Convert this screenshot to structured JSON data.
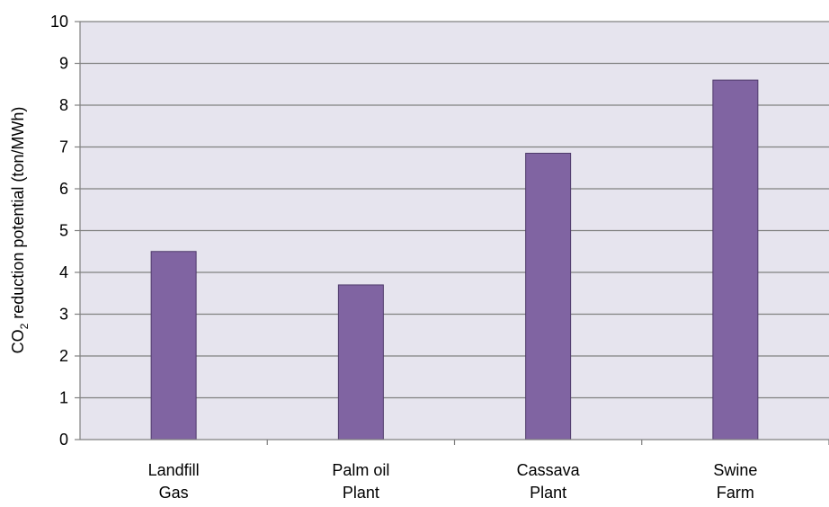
{
  "chart_data": {
    "type": "bar",
    "categories": [
      "Landfill Gas",
      "Palm oil Plant",
      "Cassava Plant",
      "Swine Farm"
    ],
    "category_lines": [
      [
        "Landfill",
        "Gas"
      ],
      [
        "Palm oil",
        "Plant"
      ],
      [
        "Cassava",
        "Plant"
      ],
      [
        "Swine",
        "Farm"
      ]
    ],
    "values": [
      4.5,
      3.7,
      6.85,
      8.6
    ],
    "title": "",
    "xlabel": "",
    "ylabel": {
      "prefix": "CO",
      "subscript": "2",
      "suffix": " reduction potential (ton/MWh)"
    },
    "ylim": [
      0,
      10
    ],
    "yticks": [
      "0",
      "1",
      "2",
      "3",
      "4",
      "5",
      "6",
      "7",
      "8",
      "9",
      "10"
    ],
    "grid": true,
    "legend": "none",
    "colors": {
      "bar_fill": "#8064a2",
      "bar_stroke": "#4f3b6b",
      "plot_background": "#e6e4ee",
      "gridline": "#808080",
      "axis": "#808080"
    }
  }
}
